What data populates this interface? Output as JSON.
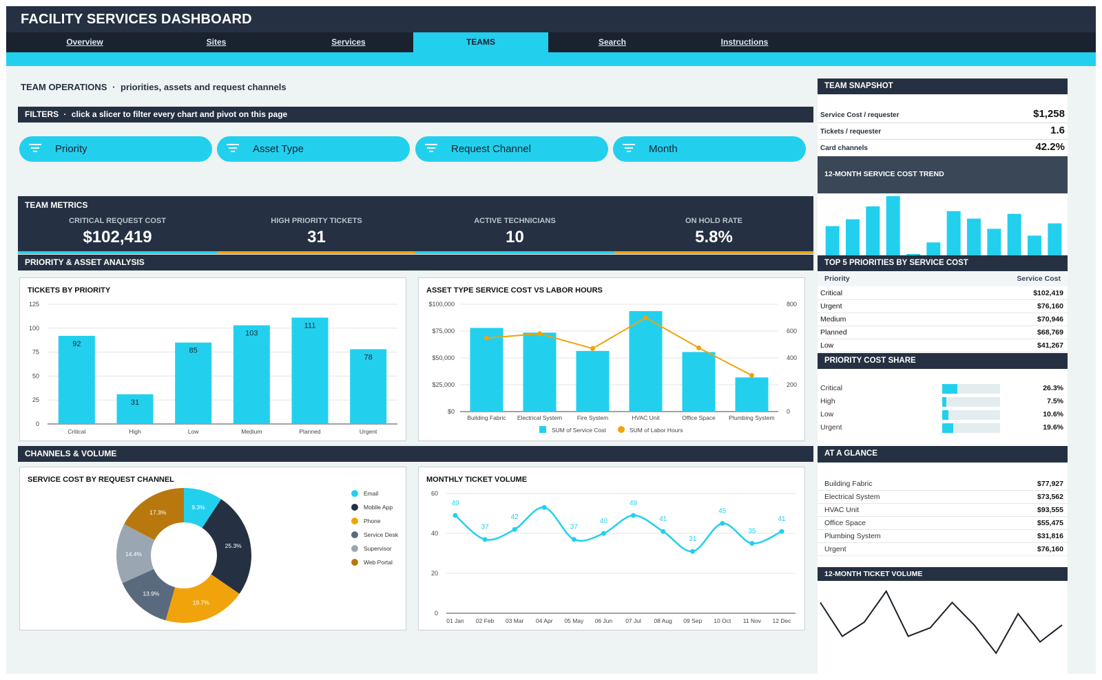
{
  "app": {
    "title": "FACILITY SERVICES DASHBOARD"
  },
  "tabs": [
    {
      "label": "Overview",
      "active": false
    },
    {
      "label": "Sites",
      "active": false
    },
    {
      "label": "Services",
      "active": false
    },
    {
      "label": "TEAMS",
      "active": true
    },
    {
      "label": "Search",
      "active": false
    },
    {
      "label": "Instructions",
      "active": false
    }
  ],
  "page": {
    "heading": "TEAM OPERATIONS",
    "separator": "·",
    "subheading": "priorities, assets and request channels"
  },
  "filters": {
    "bar_title": "FILTERS",
    "bar_hint": "click a slicer to filter every chart and pivot on this page",
    "slicers": [
      "Priority",
      "Asset Type",
      "Request Channel",
      "Month"
    ],
    "icon": "filter-icon"
  },
  "metrics": {
    "bar_title": "TEAM METRICS",
    "items": [
      {
        "label": "CRITICAL REQUEST COST",
        "value": "$102,419",
        "accent": "#22d0ee"
      },
      {
        "label": "HIGH PRIORITY TICKETS",
        "value": "31",
        "accent": "#f0a30a"
      },
      {
        "label": "ACTIVE TECHNICIANS",
        "value": "10",
        "accent": "#22d0ee"
      },
      {
        "label": "ON HOLD RATE",
        "value": "5.8%",
        "accent": "#f0a30a"
      }
    ]
  },
  "sections": {
    "priority_asset": "PRIORITY & ASSET ANALYSIS",
    "channels_volume": "CHANNELS & VOLUME"
  },
  "colors": {
    "accent": "#22d0ee",
    "dark": "#253142",
    "orange": "#f0a30a"
  },
  "chart_data": [
    {
      "id": "tickets_by_priority",
      "type": "bar",
      "title": "TICKETS BY PRIORITY",
      "categories": [
        "Critical",
        "High",
        "Low",
        "Medium",
        "Planned",
        "Urgent"
      ],
      "values": [
        92,
        31,
        85,
        103,
        111,
        78
      ],
      "value_labels": [
        "92",
        "31",
        "85",
        "103",
        "111",
        "78"
      ],
      "yticks": [
        "0",
        "25",
        "50",
        "75",
        "100",
        "125"
      ],
      "ylim": [
        0,
        125
      ],
      "grid": true
    },
    {
      "id": "asset_cost_vs_hours",
      "type": "bar",
      "title": "ASSET TYPE SERVICE COST VS LABOR HOURS",
      "categories": [
        "Building Fabric",
        "Electrical System",
        "Fire System",
        "HVAC Unit",
        "Office Space",
        "Plumbing System"
      ],
      "series": [
        {
          "name": "SUM of Service Cost",
          "type": "bar",
          "values": [
            77927,
            73562,
            56500,
            93555,
            55475,
            31816
          ]
        },
        {
          "name": "SUM of Labor Hours",
          "type": "line",
          "axis": "right",
          "values": [
            548,
            580,
            470,
            700,
            475,
            270
          ]
        }
      ],
      "yticks_left": [
        "$0",
        "$25,000",
        "$50,000",
        "$75,000",
        "$100,000"
      ],
      "yticks_right": [
        "0",
        "200",
        "400",
        "600",
        "800"
      ],
      "ylim": [
        0,
        100000
      ],
      "ylim_right": [
        0,
        800
      ],
      "legend": "bottom",
      "grid": true
    },
    {
      "id": "cost_by_channel",
      "type": "pie",
      "title": "SERVICE COST BY REQUEST CHANNEL",
      "labels": [
        "Email",
        "Mobile App",
        "Phone",
        "Service Desk",
        "Supervisor",
        "Web Portal"
      ],
      "values": [
        9.3,
        25.3,
        19.7,
        13.9,
        14.4,
        17.3
      ],
      "value_labels": [
        "9.3%",
        "25.3%",
        "19.7%",
        "13.9%",
        "14.4%",
        "17.3%"
      ],
      "colors": [
        "#22d0ee",
        "#253142",
        "#f0a30a",
        "#5a6a7e",
        "#9aa6b2",
        "#b8780e"
      ],
      "legend": "right"
    },
    {
      "id": "monthly_ticket_volume",
      "type": "line",
      "title": "MONTHLY TICKET VOLUME",
      "x": [
        "01 Jan",
        "02 Feb",
        "03 Mar",
        "04 Apr",
        "05 May",
        "06 Jun",
        "07 Jul",
        "08 Aug",
        "09 Sep",
        "10 Oct",
        "11 Nov",
        "12 Dec"
      ],
      "values": [
        49,
        37,
        42,
        53,
        37,
        40,
        49,
        41,
        31,
        45,
        35,
        41
      ],
      "value_labels": [
        "49",
        "37",
        "42",
        "",
        "37",
        "40",
        "49",
        "41",
        "31",
        "45",
        "35",
        "41"
      ],
      "yticks": [
        "0",
        "20",
        "40",
        "60"
      ],
      "ylim": [
        0,
        60
      ],
      "grid": true
    },
    {
      "id": "trend_12m_cost",
      "type": "bar",
      "title": "12-MONTH SERVICE COST TREND",
      "values": [
        43,
        53,
        72,
        87,
        1,
        19,
        65,
        54,
        39,
        61,
        29,
        47
      ]
    },
    {
      "id": "trend_12m_tickets",
      "type": "line",
      "title": "12-MONTH TICKET VOLUME",
      "values": [
        49,
        37,
        42,
        53,
        37,
        40,
        49,
        41,
        31,
        45,
        35,
        41
      ]
    }
  ],
  "snapshot": {
    "title": "TEAM SNAPSHOT",
    "rows": [
      {
        "label": "Service Cost / requester",
        "value": "$1,258"
      },
      {
        "label": "Tickets / requester",
        "value": "1.6"
      },
      {
        "label": "Card channels",
        "value": "42.2%"
      }
    ]
  },
  "top5": {
    "title": "TOP 5 PRIORITIES BY SERVICE COST",
    "col1": "Priority",
    "col2": "Service Cost",
    "rows": [
      {
        "label": "Critical",
        "value": "$102,419"
      },
      {
        "label": "Urgent",
        "value": "$76,160"
      },
      {
        "label": "Medium",
        "value": "$70,946"
      },
      {
        "label": "Planned",
        "value": "$68,769"
      },
      {
        "label": "Low",
        "value": "$41,267"
      }
    ]
  },
  "share": {
    "title": "PRIORITY COST SHARE",
    "rows": [
      {
        "label": "Critical",
        "value": "26.3%",
        "fraction": 0.263
      },
      {
        "label": "High",
        "value": "7.5%",
        "fraction": 0.075
      },
      {
        "label": "Low",
        "value": "10.6%",
        "fraction": 0.106
      },
      {
        "label": "Urgent",
        "value": "19.6%",
        "fraction": 0.196
      }
    ]
  },
  "glance": {
    "title": "AT A GLANCE",
    "rows": [
      {
        "label": "Building Fabric",
        "value": "$77,927"
      },
      {
        "label": "Electrical System",
        "value": "$73,562"
      },
      {
        "label": "HVAC Unit",
        "value": "$93,555"
      },
      {
        "label": "Office Space",
        "value": "$55,475"
      },
      {
        "label": "Plumbing System",
        "value": "$31,816"
      },
      {
        "label": "Urgent",
        "value": "$76,160"
      }
    ]
  }
}
